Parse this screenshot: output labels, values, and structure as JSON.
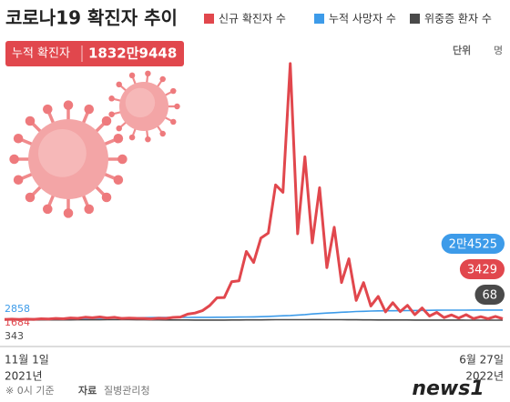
{
  "header": {
    "title": "코로나19 확진자 추이",
    "badge_label": "누적 확진자",
    "badge_value": "1832만9448",
    "unit_label": "단위",
    "unit": "명"
  },
  "chart_data": {
    "type": "line",
    "x_start": {
      "date": "11월 1일",
      "year": "2021년"
    },
    "x_end": {
      "date": "6월 27일",
      "year": "2022년"
    },
    "ylim": [
      0,
      630000
    ],
    "series": [
      {
        "name": "신규 확진자 수",
        "color": "#e1474d",
        "values": [
          1684,
          2482,
          1760,
          2520,
          2006,
          3292,
          2827,
          4116,
          3309,
          5266,
          4325,
          7102,
          5817,
          7622,
          5318,
          6919,
          4207,
          5035,
          4443,
          4126,
          3007,
          4542,
          4194,
          6603,
          7513,
          14518,
          17079,
          22907,
          35286,
          54122,
          54941,
          93135,
          95362,
          166209,
          139626,
          198803,
          210716,
          327549,
          309790,
          621328,
          209169,
          395598,
          187213,
          320743,
          127190,
          224820,
          90928,
          148443,
          47743,
          90867,
          34370,
          57464,
          20085,
          42296,
          20601,
          35906,
          13296,
          29581,
          9975,
          18816,
          6141,
          12542,
          5022,
          13272,
          3824,
          8429,
          3531,
          8990,
          3429
        ],
        "value_labels": [
          "1684",
          null,
          null,
          null,
          null,
          null,
          null,
          null,
          null,
          null,
          null,
          null,
          null,
          null,
          null,
          null,
          null,
          null,
          null,
          null,
          null,
          null,
          null,
          null,
          null,
          null,
          null,
          null,
          null,
          null,
          null,
          null,
          null,
          null,
          null,
          null,
          null,
          null,
          null,
          null,
          null,
          null,
          null,
          null,
          null,
          null,
          null,
          null,
          null,
          null,
          null,
          null,
          null,
          null,
          null,
          null,
          null,
          null,
          null,
          null,
          null,
          null,
          null,
          null,
          null,
          null,
          null,
          null,
          "3429"
        ]
      },
      {
        "name": "누적 사망자 수",
        "color": "#3d9be9",
        "values": [
          2858,
          2892,
          2935,
          2988,
          3052,
          3137,
          3240,
          3363,
          3505,
          3705,
          3893,
          4130,
          4387,
          4644,
          4906,
          5150,
          5382,
          5563,
          5781,
          5987,
          6166,
          6334,
          6452,
          6540,
          6620,
          6712,
          6772,
          6812,
          6873,
          6969,
          7103,
          7238,
          7405,
          7607,
          7895,
          8357,
          8957,
          9646,
          10595,
          11252,
          12428,
          13432,
          14899,
          15993,
          17235,
          18033,
          19246,
          19914,
          20837,
          21354,
          21993,
          22391,
          22585,
          22796,
          23014,
          23178,
          23349,
          23605,
          23806,
          23936,
          24176,
          24258,
          24299,
          24334,
          24373,
          24400,
          24430,
          24478,
          24525
        ],
        "value_labels": [
          "2858",
          null,
          null,
          null,
          null,
          null,
          null,
          null,
          null,
          null,
          null,
          null,
          null,
          null,
          null,
          null,
          null,
          null,
          null,
          null,
          null,
          null,
          null,
          null,
          null,
          null,
          null,
          null,
          null,
          null,
          null,
          null,
          null,
          null,
          null,
          null,
          null,
          null,
          null,
          null,
          null,
          null,
          null,
          null,
          null,
          null,
          null,
          null,
          null,
          null,
          null,
          null,
          null,
          null,
          null,
          null,
          null,
          null,
          null,
          null,
          null,
          null,
          null,
          null,
          null,
          null,
          null,
          null,
          "2만4525"
        ]
      },
      {
        "name": "위중증 환자 수",
        "color": "#4a4a4a",
        "values": [
          343,
          378,
          425,
          475,
          522,
          586,
          629,
          661,
          661,
          752,
          774,
          840,
          906,
          989,
          997,
          1084,
          1151,
          1015,
          882,
          829,
          700,
          626,
          532,
          433,
          385,
          350,
          272,
          278,
          270,
          288,
          313,
          408,
          480,
          643,
          727,
          762,
          954,
          1113,
          1158,
          1049,
          1104,
          1084,
          1273,
          1315,
          1108,
          1093,
          1014,
          947,
          868,
          727,
          613,
          461,
          417,
          421,
          334,
          366,
          321,
          293,
          246,
          256,
          207,
          160,
          126,
          98,
          86,
          84,
          73,
          70,
          68
        ],
        "value_labels": [
          "343",
          null,
          null,
          null,
          null,
          null,
          null,
          null,
          null,
          null,
          null,
          null,
          null,
          null,
          null,
          null,
          null,
          null,
          null,
          null,
          null,
          null,
          null,
          null,
          null,
          null,
          null,
          null,
          null,
          null,
          null,
          null,
          null,
          null,
          null,
          null,
          null,
          null,
          null,
          null,
          null,
          null,
          null,
          null,
          null,
          null,
          null,
          null,
          null,
          null,
          null,
          null,
          null,
          null,
          null,
          null,
          null,
          null,
          null,
          null,
          null,
          null,
          null,
          null,
          null,
          null,
          null,
          null,
          "68"
        ]
      }
    ]
  },
  "footer": {
    "note": "※ 0시 기준",
    "source_label": "자료",
    "source": "질병관리청",
    "logo": "news1"
  }
}
